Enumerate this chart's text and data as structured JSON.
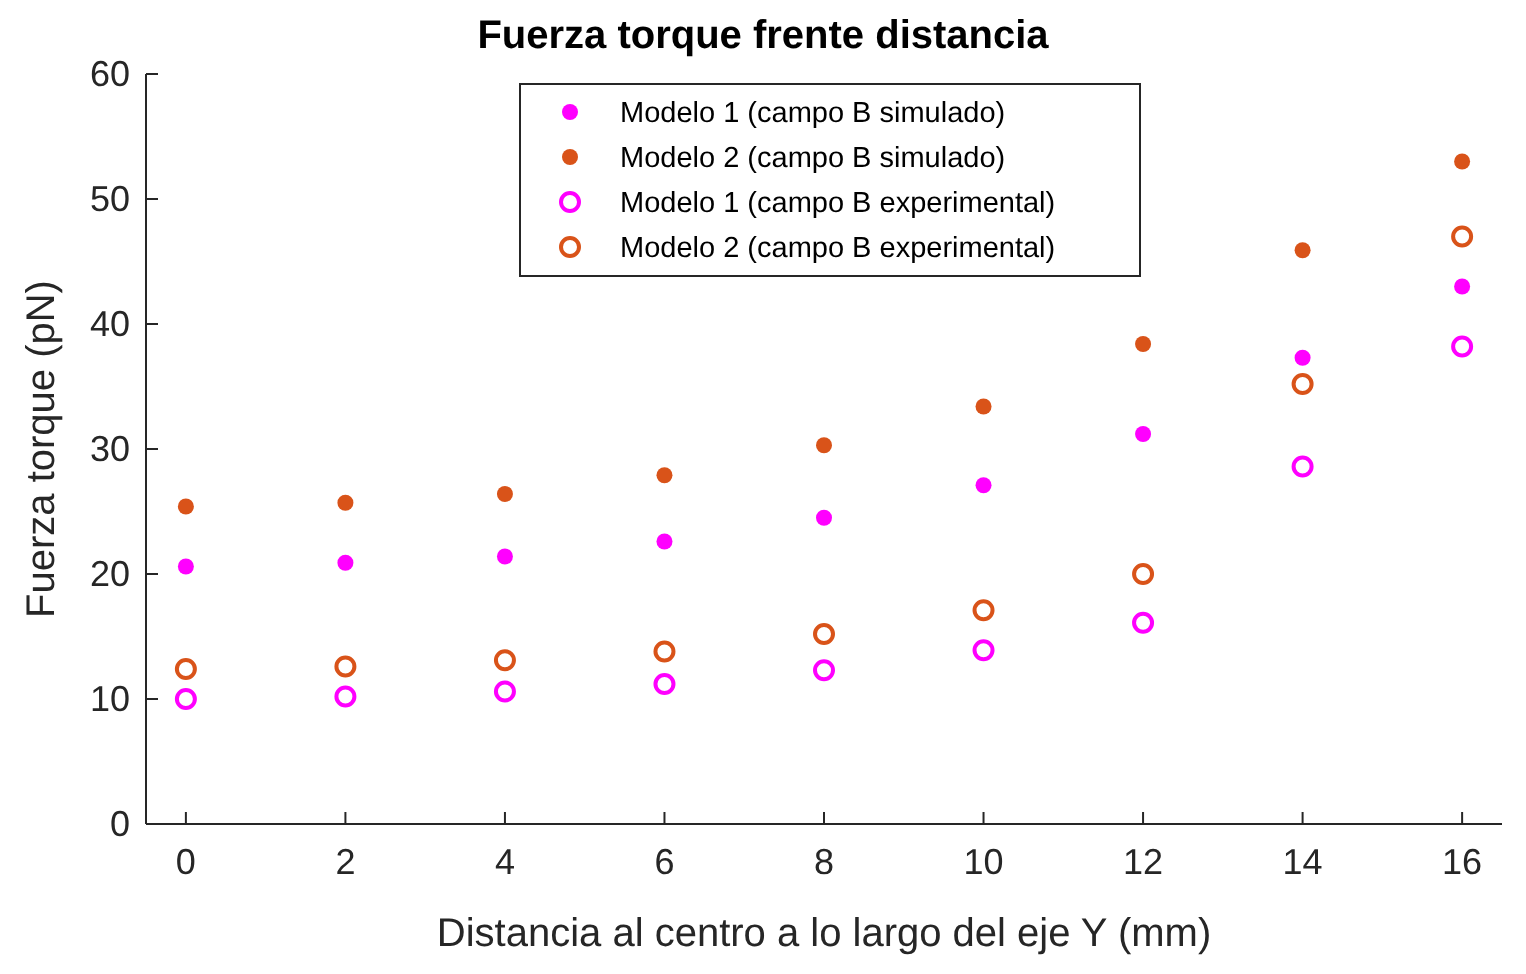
{
  "chart_data": {
    "type": "scatter",
    "title": "Fuerza torque frente distancia",
    "xlabel": "Distancia al centro a lo largo del eje Y (mm)",
    "ylabel": "Fuerza torque (pN)",
    "x": [
      0,
      2,
      4,
      6,
      8,
      10,
      12,
      14,
      16
    ],
    "xlim": [
      -0.5,
      16.5
    ],
    "xticks": [
      0,
      2,
      4,
      6,
      8,
      10,
      12,
      14,
      16
    ],
    "ylim": [
      0,
      60
    ],
    "yticks": [
      0,
      10,
      20,
      30,
      40,
      50,
      60
    ],
    "grid": false,
    "legend": "top",
    "marker": "circle",
    "series": [
      {
        "name": "Modelo 1 (campo B simulado)",
        "color": "#ff00ff",
        "values": [
          20.6,
          20.9,
          21.4,
          22.6,
          24.5,
          27.1,
          31.2,
          37.3,
          43.0
        ]
      },
      {
        "name": "Modelo 2 (campo B simulado)",
        "color": "#d95319",
        "values": [
          25.4,
          25.7,
          26.4,
          27.9,
          30.3,
          33.4,
          38.4,
          45.9,
          53.0
        ]
      },
      {
        "name": "Modelo 1 (campo B experimental)",
        "color": "#ff00ff",
        "marker": "circle-open",
        "values": [
          10.0,
          10.2,
          10.6,
          11.2,
          12.3,
          13.9,
          16.1,
          28.6,
          38.2
        ]
      },
      {
        "name": "Modelo 2 (campo B experimental)",
        "color": "#d95319",
        "marker": "circle-open",
        "values": [
          12.4,
          12.6,
          13.1,
          13.8,
          15.2,
          17.1,
          20.0,
          35.2,
          47.0
        ]
      }
    ]
  }
}
